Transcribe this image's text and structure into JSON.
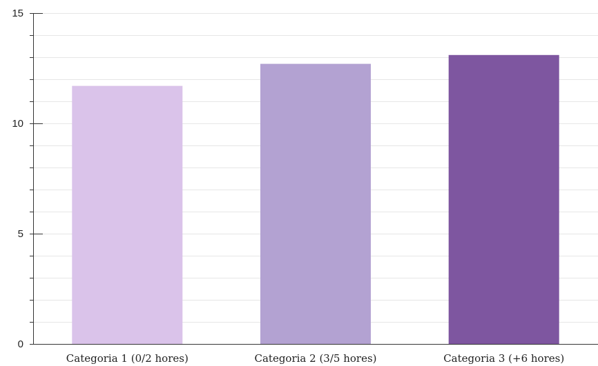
{
  "chart_data": {
    "type": "bar",
    "title": "",
    "xlabel": "",
    "ylabel": "",
    "categories": [
      "Categoria 1 (0/2 hores)",
      "Categoria 2 (3/5 hores)",
      "Categoria 3 (+6 hores)"
    ],
    "values": [
      11.7,
      12.7,
      13.1
    ],
    "colors": [
      "#dac3ea",
      "#b3a2d2",
      "#7e56a0"
    ],
    "ylim": [
      0,
      15
    ],
    "yticks": [
      0,
      5,
      10,
      15
    ],
    "minor_tick_step": 1,
    "grid": true,
    "legend": "none",
    "gridline_color": "#e6e6e6",
    "axis_color": "#333333"
  }
}
